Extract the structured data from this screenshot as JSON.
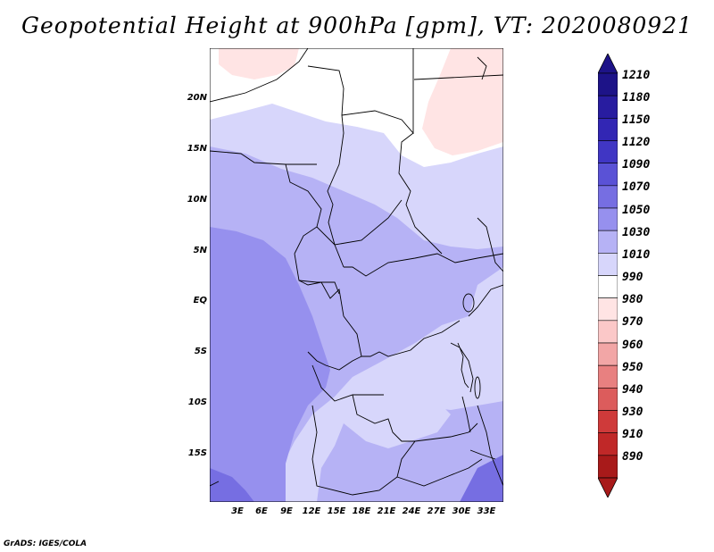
{
  "title": "Geopotential Height at 900hPa [gpm], VT: 2020080921",
  "footer": "GrADS: IGES/COLA",
  "map": {
    "region": "Central Africa",
    "lat_labels": [
      "20N",
      "15N",
      "10N",
      "5N",
      "EQ",
      "5S",
      "10S",
      "15S"
    ],
    "lon_labels": [
      "3E",
      "6E",
      "9E",
      "12E",
      "15E",
      "18E",
      "21E",
      "24E",
      "27E",
      "30E",
      "33E"
    ]
  },
  "colorbar": {
    "levels": [
      "1210",
      "1180",
      "1150",
      "1120",
      "1090",
      "1070",
      "1050",
      "1030",
      "1010",
      "990",
      "980",
      "970",
      "960",
      "950",
      "940",
      "930",
      "910",
      "890"
    ],
    "colors": [
      "#1d1388",
      "#281ca0",
      "#3226b4",
      "#4036c4",
      "#5a52d6",
      "#766ee2",
      "#9690ee",
      "#b6b2f5",
      "#d7d6fb",
      "#ffffff",
      "#ffe4e4",
      "#fbc8c8",
      "#f2a6a6",
      "#e88080",
      "#dc5c5c",
      "#cf3a3a",
      "#c02828",
      "#a81a1a"
    ],
    "top_arrow_color": "#1d1388",
    "bottom_arrow_color": "#a81a1a"
  }
}
